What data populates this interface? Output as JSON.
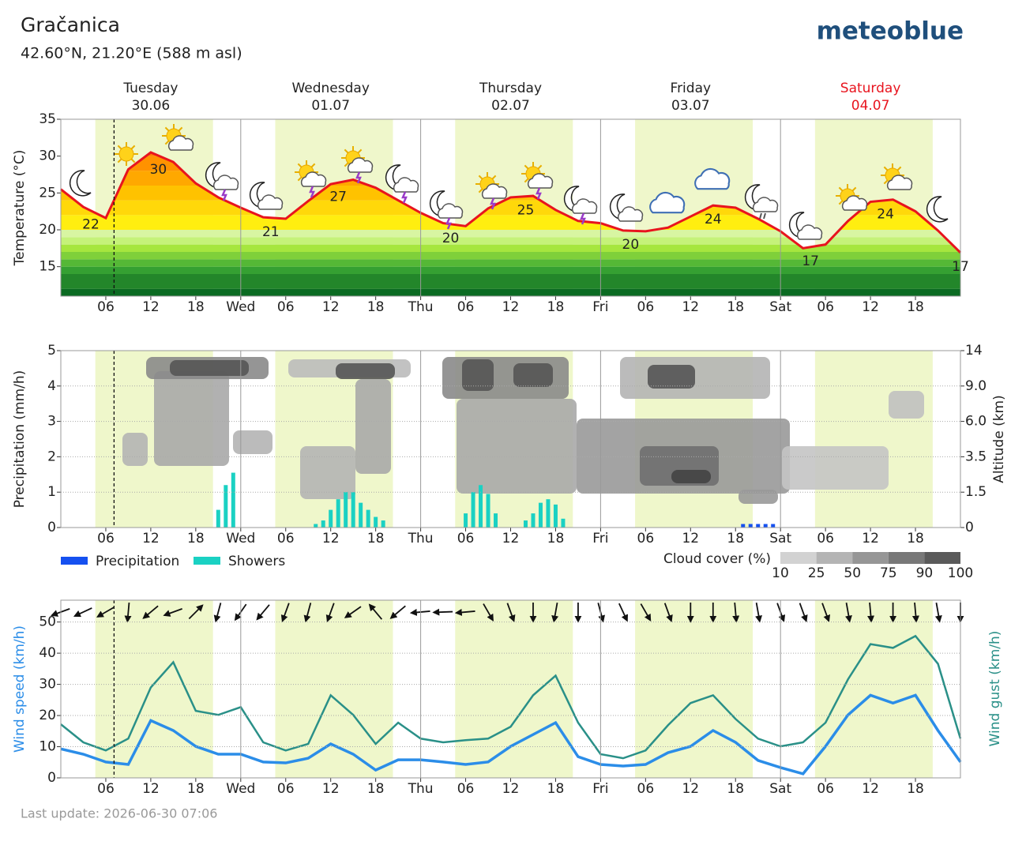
{
  "header": {
    "location": "Gračanica",
    "coordinates": "42.60°N, 21.20°E (588 m asl)",
    "brand": "meteoblue"
  },
  "footer": {
    "last_update": "Last update: 2026-06-30 07:06"
  },
  "chart_data": [
    {
      "type": "line",
      "ylabel": "Temperature (°C)",
      "days": [
        {
          "name": "Tuesday",
          "date": "30.06"
        },
        {
          "name": "Wednesday",
          "date": "01.07"
        },
        {
          "name": "Thursday",
          "date": "02.07"
        },
        {
          "name": "Friday",
          "date": "03.07"
        },
        {
          "name": "Saturday",
          "date": "04.07",
          "color": "#e8141e"
        }
      ],
      "x": [
        0,
        3,
        6,
        9,
        12,
        15,
        18,
        21,
        24,
        27,
        30,
        33,
        36,
        39,
        42,
        45,
        48,
        51,
        54,
        57,
        60,
        63,
        66,
        69,
        72,
        75,
        78,
        81,
        84,
        87,
        90,
        93,
        96,
        99,
        102,
        105,
        108,
        111,
        114,
        117,
        120
      ],
      "series": [
        {
          "name": "Temperature",
          "color": "#e8141e",
          "values": [
            25.5,
            23.1,
            21.6,
            28.2,
            30.5,
            29.2,
            26.3,
            24.4,
            23.0,
            21.7,
            21.5,
            23.9,
            26.2,
            26.8,
            25.7,
            24.0,
            22.3,
            20.9,
            20.5,
            22.9,
            24.4,
            24.6,
            22.7,
            21.2,
            20.9,
            19.9,
            19.8,
            20.3,
            21.8,
            23.3,
            23.0,
            21.5,
            19.8,
            17.5,
            18.0,
            21.2,
            23.8,
            24.1,
            22.5,
            19.9,
            16.9
          ]
        }
      ],
      "annotations": [
        {
          "value": 22,
          "x": 4
        },
        {
          "value": 30,
          "x": 13
        },
        {
          "value": 21,
          "x": 28
        },
        {
          "value": 27,
          "x": 37
        },
        {
          "value": 20,
          "x": 52
        },
        {
          "value": 25,
          "x": 62
        },
        {
          "value": 20,
          "x": 76
        },
        {
          "value": 24,
          "x": 87
        },
        {
          "value": 17,
          "x": 100
        },
        {
          "value": 24,
          "x": 110
        },
        {
          "value": 17,
          "x": 120
        }
      ],
      "xlim": [
        0,
        120
      ],
      "xticks": [
        {
          "value": 6,
          "label": "06"
        },
        12,
        18,
        {
          "value": 24,
          "label": "Wed"
        },
        {
          "value": 30,
          "label": "06"
        },
        {
          "value": 36,
          "label": "12"
        },
        {
          "value": 42,
          "label": "18"
        },
        {
          "value": 48,
          "label": "Thu"
        },
        {
          "value": 54,
          "label": "06"
        },
        {
          "value": 60,
          "label": "12"
        },
        {
          "value": 66,
          "label": "18"
        },
        {
          "value": 72,
          "label": "Fri"
        },
        {
          "value": 78,
          "label": "06"
        },
        {
          "value": 84,
          "label": "12"
        },
        {
          "value": 90,
          "label": "18"
        },
        {
          "value": 96,
          "label": "Sat"
        },
        {
          "value": 102,
          "label": "06"
        },
        {
          "value": 108,
          "label": "12"
        },
        {
          "value": 114,
          "label": "18"
        }
      ],
      "ylim": [
        11,
        35
      ],
      "yticks": [
        15,
        20,
        25,
        30,
        35
      ]
    },
    {
      "type": "bar",
      "ylabel": "Precipitation (mm/h)",
      "y2label": "Altitude (km)",
      "series": [
        {
          "name": "Precipitation",
          "color": "#1550f0",
          "x": [
            91,
            92,
            93,
            94,
            95
          ],
          "values": [
            0.1,
            0.1,
            0.1,
            0.1,
            0.1
          ]
        },
        {
          "name": "Showers",
          "color": "#1ad1c3",
          "x": [
            21,
            22,
            23,
            34,
            35,
            36,
            37,
            38,
            39,
            40,
            41,
            42,
            43,
            54,
            55,
            56,
            57,
            58,
            62,
            63,
            64,
            65,
            66,
            67
          ],
          "values": [
            0.5,
            1.2,
            1.55,
            0.1,
            0.2,
            0.5,
            0.8,
            1.0,
            1.0,
            0.7,
            0.5,
            0.3,
            0.2,
            0.4,
            1.0,
            1.2,
            0.95,
            0.4,
            0.2,
            0.4,
            0.7,
            0.8,
            0.65,
            0.25
          ]
        }
      ],
      "colorbar": {
        "label": "Cloud cover (%)",
        "ticks": [
          10,
          25,
          50,
          75,
          90,
          100
        ],
        "colors": [
          "#d2d2d2",
          "#b4b4b4",
          "#969696",
          "#787878",
          "#5a5a5a"
        ]
      },
      "xlim": [
        0,
        120
      ],
      "xticks": [
        {
          "value": 6,
          "label": "06"
        },
        12,
        18,
        {
          "value": 24,
          "label": "Wed"
        },
        {
          "value": 30,
          "label": "06"
        },
        {
          "value": 36,
          "label": "12"
        },
        {
          "value": 42,
          "label": "18"
        },
        {
          "value": 48,
          "label": "Thu"
        },
        {
          "value": 54,
          "label": "06"
        },
        {
          "value": 60,
          "label": "12"
        },
        {
          "value": 66,
          "label": "18"
        },
        {
          "value": 72,
          "label": "Fri"
        },
        {
          "value": 78,
          "label": "06"
        },
        {
          "value": 84,
          "label": "12"
        },
        {
          "value": 90,
          "label": "18"
        },
        {
          "value": 96,
          "label": "Sat"
        },
        {
          "value": 102,
          "label": "06"
        },
        {
          "value": 108,
          "label": "12"
        },
        {
          "value": 114,
          "label": "18"
        }
      ],
      "ylim": [
        0,
        5
      ],
      "yticks": [
        0,
        1,
        2,
        3,
        4,
        5
      ],
      "y2lim": [
        0,
        14
      ],
      "y2ticks": [
        0,
        1.5,
        3.5,
        {
          "value": 6,
          "label": "6.0"
        },
        {
          "value": 9,
          "label": "9.0"
        },
        14
      ],
      "grid": true
    },
    {
      "type": "line",
      "ylabel": "Wind speed (km/h)",
      "y2label": "Wind gust (km/h)",
      "x": [
        0,
        3,
        6,
        9,
        12,
        15,
        18,
        21,
        24,
        27,
        30,
        33,
        36,
        39,
        42,
        45,
        48,
        51,
        54,
        57,
        60,
        63,
        66,
        69,
        72,
        75,
        78,
        81,
        84,
        87,
        90,
        93,
        96,
        99,
        102,
        105,
        108,
        111,
        114,
        117,
        120
      ],
      "series": [
        {
          "name": "Wind speed",
          "color": "#2b8de8",
          "values": [
            9.3,
            7.6,
            5.1,
            4.3,
            18.4,
            15.2,
            10.1,
            7.6,
            7.6,
            5.1,
            4.8,
            6.3,
            10.9,
            7.6,
            2.5,
            5.8,
            5.8,
            5.1,
            4.3,
            5.1,
            10.1,
            13.9,
            17.7,
            6.8,
            4.3,
            3.8,
            4.3,
            8.1,
            10.1,
            15.2,
            11.4,
            5.6,
            3.3,
            1.3,
            10.1,
            20.2,
            26.5,
            24.0,
            26.5,
            15.2,
            5.1
          ]
        },
        {
          "name": "Wind gust",
          "color": "#2a9088",
          "values": [
            17.2,
            11.4,
            8.8,
            12.6,
            29.0,
            37.1,
            21.5,
            20.2,
            22.7,
            11.4,
            8.8,
            10.9,
            26.5,
            20.2,
            10.9,
            17.7,
            12.6,
            11.4,
            12.1,
            12.6,
            16.4,
            26.5,
            32.8,
            17.7,
            7.6,
            6.3,
            8.8,
            16.9,
            24.0,
            26.5,
            18.9,
            12.6,
            10.1,
            11.4,
            17.7,
            31.6,
            42.9,
            41.7,
            45.5,
            36.6,
            12.6
          ]
        }
      ],
      "wind_direction": [
        70,
        65,
        60,
        5,
        50,
        70,
        225,
        15,
        35,
        40,
        20,
        15,
        20,
        55,
        140,
        50,
        85,
        88,
        85,
        330,
        340,
        0,
        10,
        0,
        345,
        335,
        330,
        340,
        0,
        0,
        355,
        350,
        340,
        340,
        340,
        350,
        355,
        0,
        355,
        350,
        0
      ],
      "xlim": [
        0,
        120
      ],
      "xticks": [
        {
          "value": 6,
          "label": "06"
        },
        12,
        18,
        {
          "value": 24,
          "label": "Wed"
        },
        {
          "value": 30,
          "label": "06"
        },
        {
          "value": 36,
          "label": "12"
        },
        {
          "value": 42,
          "label": "18"
        },
        {
          "value": 48,
          "label": "Thu"
        },
        {
          "value": 54,
          "label": "06"
        },
        {
          "value": 60,
          "label": "12"
        },
        {
          "value": 66,
          "label": "18"
        },
        {
          "value": 72,
          "label": "Fri"
        },
        {
          "value": 78,
          "label": "06"
        },
        {
          "value": 84,
          "label": "12"
        },
        {
          "value": 90,
          "label": "18"
        },
        {
          "value": 96,
          "label": "Sat"
        },
        {
          "value": 102,
          "label": "06"
        },
        {
          "value": 108,
          "label": "12"
        },
        {
          "value": 114,
          "label": "18"
        }
      ],
      "ylim": [
        0,
        57
      ],
      "yticks": [
        0,
        10,
        20,
        30,
        40,
        50
      ],
      "grid": true
    }
  ]
}
